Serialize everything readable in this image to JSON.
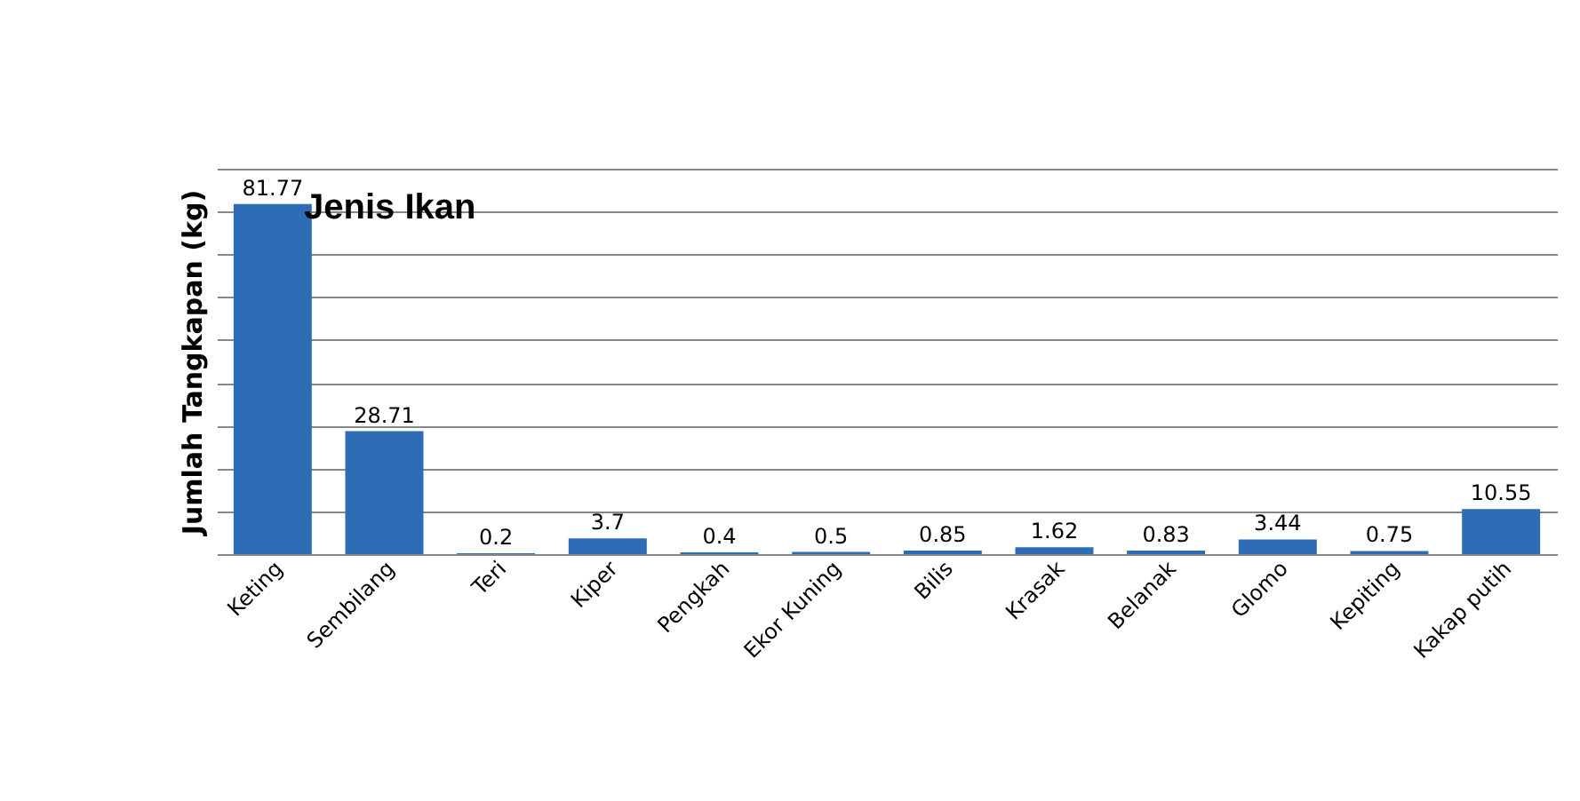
{
  "chart_data": {
    "type": "bar",
    "title": "Jenis Ikan",
    "ylabel": "Jumlah Tangkapan (kg)",
    "categories": [
      "Keting",
      "Sembilang",
      "Teri",
      "Kiper",
      "Pengkah",
      "Ekor Kuning",
      "Bilis",
      "Krasak",
      "Belanak",
      "Glomo",
      "Kepiting",
      "Kakap putih"
    ],
    "values": [
      81.77,
      28.71,
      0.2,
      3.7,
      0.4,
      0.5,
      0.85,
      1.62,
      0.83,
      3.44,
      0.75,
      10.55
    ],
    "color": "#2e6cb5",
    "data_labels": true,
    "grid": "y",
    "tick_labels": "x"
  }
}
